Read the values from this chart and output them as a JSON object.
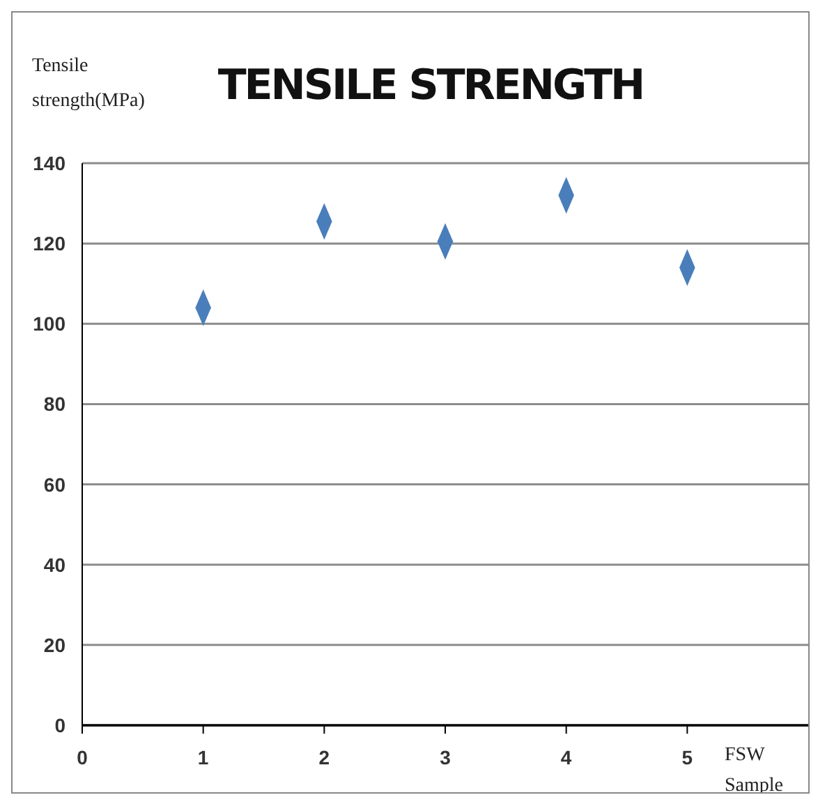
{
  "chart_data": {
    "type": "scatter",
    "title": "TENSILE STRENGTH",
    "xlabel": "FSW Sample",
    "ylabel": "Tensile strength(MPa)",
    "x": [
      1,
      2,
      3,
      4,
      5
    ],
    "values": [
      104,
      125.5,
      120.5,
      132,
      114
    ],
    "color": "#4a7ebb",
    "marker": "diamond",
    "xlim": [
      0,
      6
    ],
    "xticks": [
      0,
      1,
      2,
      3,
      4,
      5
    ],
    "ylim": [
      0,
      140
    ],
    "yticks": [
      0,
      20,
      40,
      60,
      80,
      100,
      120,
      140
    ],
    "grid": "y"
  }
}
